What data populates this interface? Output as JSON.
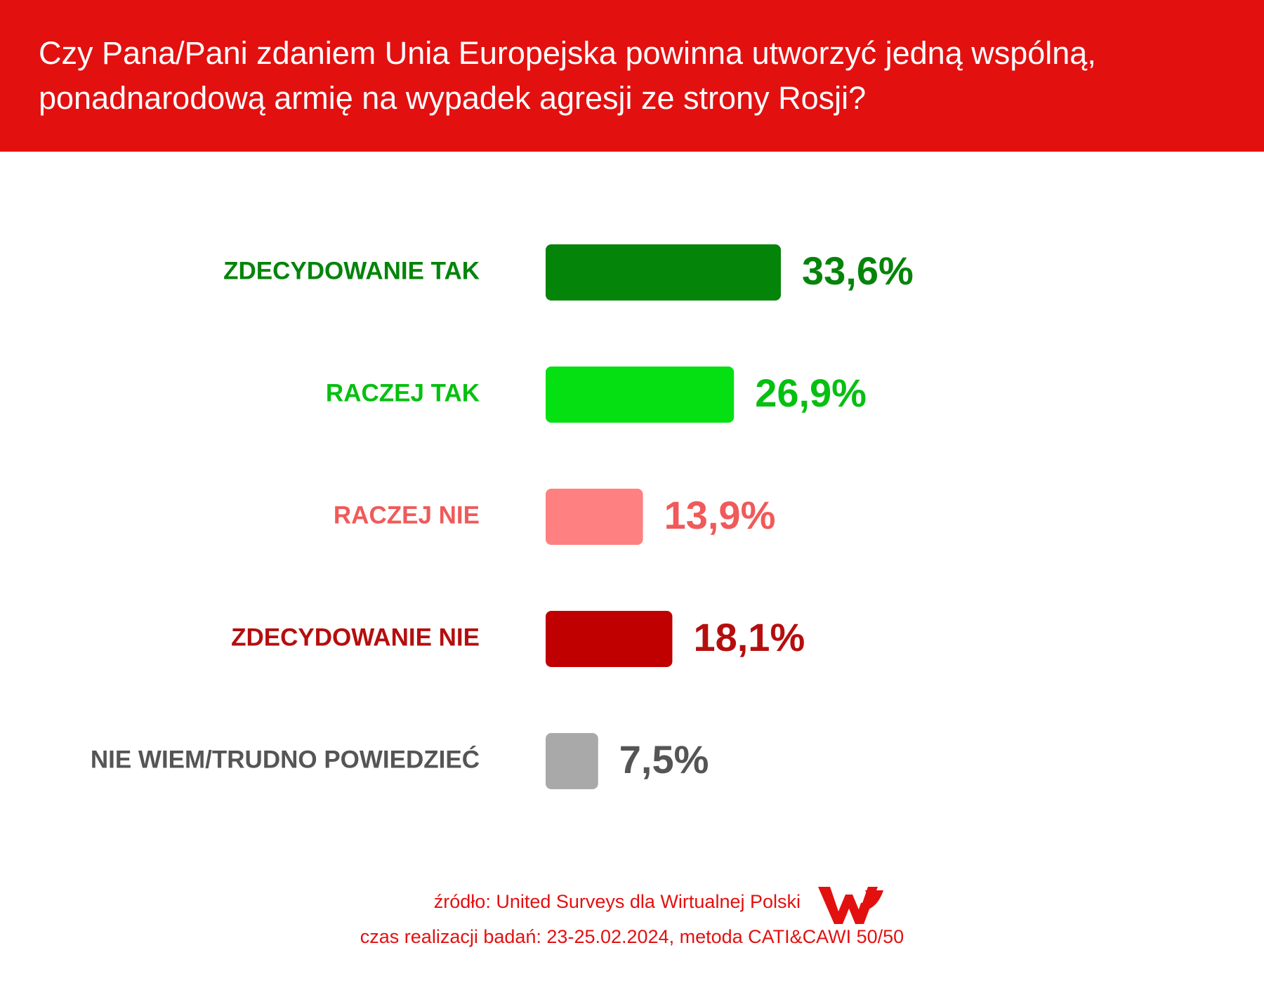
{
  "chart_data": {
    "type": "hbar",
    "title": "Czy Pana/Pani zdaniem Unia Europejska powinna utworzyć jedną wspólną, ponadnarodową armię na wypadek agresji ze strony Rosji?",
    "categories": [
      "ZDECYDOWANIE TAK",
      "RACZEJ TAK",
      "RACZEJ NIE",
      "ZDECYDOWANIE NIE",
      "NIE WIEM/TRUDNO POWIEDZIEĆ"
    ],
    "values": [
      33.6,
      26.9,
      13.9,
      18.1,
      7.5
    ],
    "value_labels": [
      "33,6%",
      "26,9%",
      "13,9%",
      "18,1%",
      "7,5%"
    ],
    "colors": [
      "#05840a",
      "#05e012",
      "#ff8080",
      "#c00000",
      "#a9a9a9"
    ],
    "label_colors": [
      "#05840a",
      "#05c010",
      "#f05a5a",
      "#b50e0e",
      "#555555"
    ],
    "source": "źródło: United Surveys dla Wirtualnej Polski",
    "note": "czas realizacji badań: 23-25.02.2024, metoda CATI&CAWI 50/50"
  }
}
